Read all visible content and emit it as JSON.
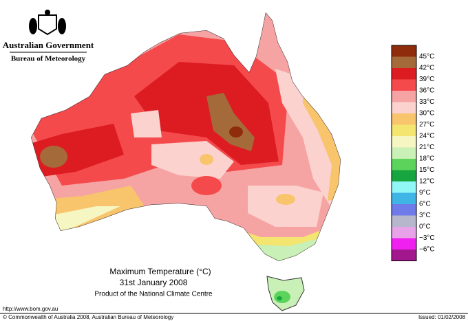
{
  "header": {
    "government": "Australian Government",
    "agency": "Bureau of Meteorology"
  },
  "map": {
    "title": "Maximum Temperature (°C)",
    "date": "31st January 2008",
    "product": "Product of the National Climate Centre"
  },
  "legend": {
    "colors": [
      "#8e2c0c",
      "#a56a3a",
      "#dd1c22",
      "#f44a4c",
      "#f5a3a3",
      "#fbd2ce",
      "#f8c46c",
      "#f4e470",
      "#f6f6c2",
      "#c9f0b6",
      "#5cd45c",
      "#16a53e",
      "#91f6f6",
      "#3fb5e6",
      "#6f7be8",
      "#b6b6cc",
      "#e8a2e8",
      "#f020f0",
      "#a2168e"
    ],
    "labels": [
      "45°C",
      "42°C",
      "39°C",
      "36°C",
      "33°C",
      "30°C",
      "27°C",
      "24°C",
      "21°C",
      "18°C",
      "15°C",
      "12°C",
      "9°C",
      "6°C",
      "3°C",
      "0°C",
      "−3°C",
      "−6°C"
    ]
  },
  "footer": {
    "url": "http://www.bom.gov.au",
    "copyright": "© Commonwealth of Australia 2008, Australian Bureau of Meteorology",
    "issued": "Issued: 01/02/2008"
  }
}
